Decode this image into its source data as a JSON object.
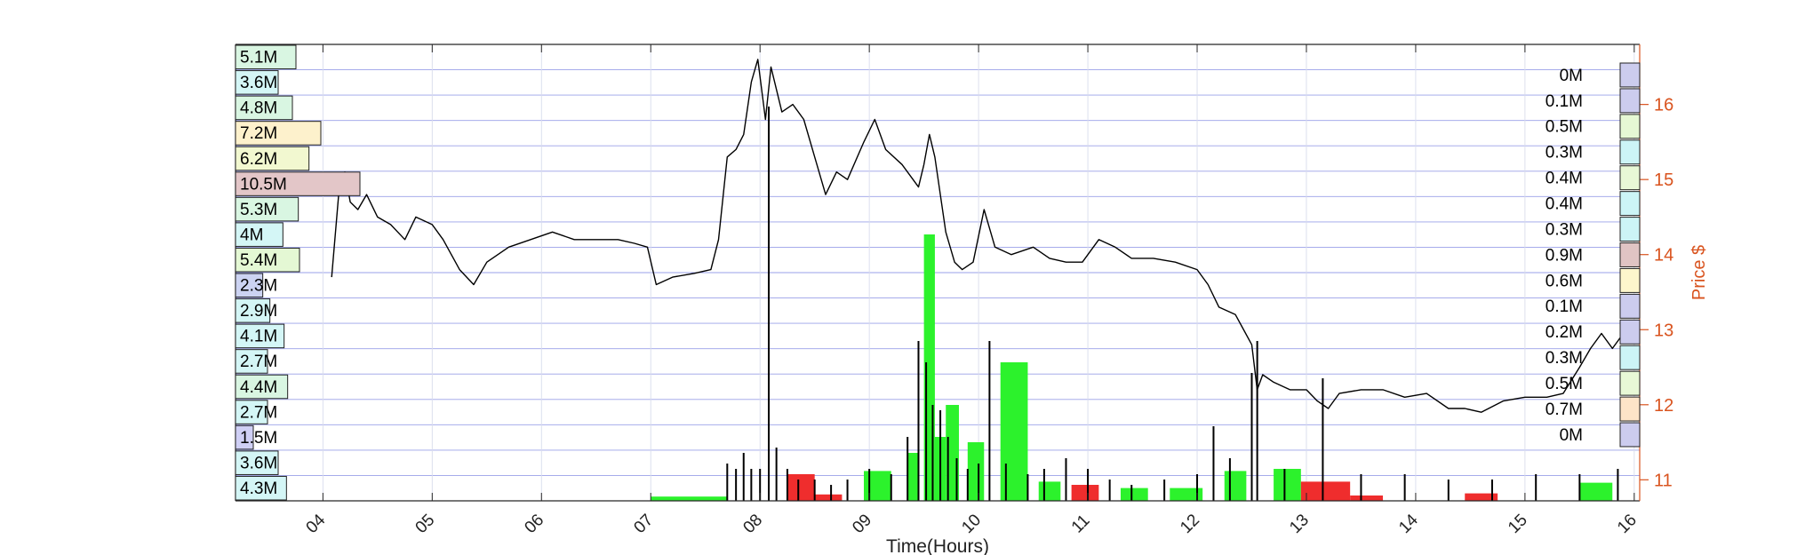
{
  "chart_data": {
    "type": "line",
    "subtype": "intraday price with volume-by-price profile and per-minute volume bars",
    "xlabel": "Time(Hours)",
    "ylabel_right": "Price $",
    "x_ticks": [
      "04",
      "05",
      "06",
      "07",
      "08",
      "09",
      "10",
      "11",
      "12",
      "13",
      "14",
      "15",
      "16"
    ],
    "x_range_hours": [
      3.2,
      16.05
    ],
    "price_ticks": [
      11,
      12,
      13,
      14,
      15,
      16
    ],
    "price_range": [
      10.72,
      16.8
    ],
    "grid": true,
    "price_series": {
      "name": "",
      "x_hours": [
        4.08,
        4.15,
        4.2,
        4.25,
        4.32,
        4.4,
        4.5,
        4.62,
        4.75,
        4.85,
        5.0,
        5.1,
        5.25,
        5.38,
        5.5,
        5.7,
        5.9,
        6.1,
        6.3,
        6.5,
        6.7,
        6.85,
        6.97,
        7.05,
        7.2,
        7.4,
        7.55,
        7.62,
        7.7,
        7.78,
        7.85,
        7.92,
        7.98,
        8.05,
        8.1,
        8.2,
        8.3,
        8.4,
        8.5,
        8.6,
        8.7,
        8.8,
        8.95,
        9.05,
        9.15,
        9.3,
        9.45,
        9.5,
        9.55,
        9.6,
        9.7,
        9.78,
        9.85,
        9.95,
        10.05,
        10.15,
        10.3,
        10.5,
        10.65,
        10.8,
        10.95,
        11.1,
        11.25,
        11.4,
        11.6,
        11.8,
        12.0,
        12.1,
        12.2,
        12.35,
        12.5,
        12.55,
        12.6,
        12.7,
        12.85,
        13.0,
        13.1,
        13.2,
        13.3,
        13.5,
        13.7,
        13.9,
        14.1,
        14.3,
        14.45,
        14.6,
        14.8,
        15.0,
        15.2,
        15.35,
        15.5,
        15.6,
        15.7,
        15.8,
        15.9,
        15.98
      ],
      "y_price": [
        13.7,
        14.9,
        15.1,
        14.7,
        14.6,
        14.8,
        14.5,
        14.4,
        14.2,
        14.5,
        14.4,
        14.2,
        13.8,
        13.6,
        13.9,
        14.1,
        14.2,
        14.3,
        14.2,
        14.2,
        14.2,
        14.15,
        14.1,
        13.6,
        13.7,
        13.75,
        13.8,
        14.2,
        15.3,
        15.4,
        15.6,
        16.3,
        16.6,
        15.8,
        16.5,
        15.9,
        16.0,
        15.8,
        15.3,
        14.8,
        15.1,
        15.0,
        15.5,
        15.8,
        15.4,
        15.2,
        14.9,
        15.2,
        15.6,
        15.3,
        14.3,
        13.9,
        13.8,
        13.9,
        14.6,
        14.1,
        14.0,
        14.1,
        13.95,
        13.9,
        13.9,
        14.2,
        14.1,
        13.95,
        13.95,
        13.9,
        13.8,
        13.6,
        13.3,
        13.2,
        12.8,
        12.2,
        12.4,
        12.3,
        12.2,
        12.2,
        12.05,
        11.95,
        12.15,
        12.2,
        12.2,
        12.1,
        12.15,
        11.95,
        11.95,
        11.9,
        12.05,
        12.1,
        12.1,
        12.15,
        12.5,
        12.75,
        12.95,
        12.75,
        12.95,
        12.9
      ]
    },
    "volume_by_price_left": {
      "labels": [
        "5.1M",
        "3.6M",
        "4.8M",
        "7.2M",
        "6.2M",
        "10.5M",
        "5.3M",
        "4M",
        "5.4M",
        "2.3M",
        "2.9M",
        "4.1M",
        "2.7M",
        "4.4M",
        "2.7M",
        "1.5M",
        "3.6M",
        "4.3M"
      ],
      "values_millions": [
        5.1,
        3.6,
        4.8,
        7.2,
        6.2,
        10.5,
        5.3,
        4.0,
        5.4,
        2.3,
        2.9,
        4.1,
        2.7,
        4.4,
        2.7,
        1.5,
        3.6,
        4.3
      ],
      "colors": [
        "#d9f6e2",
        "#d4f6f6",
        "#d9f6e2",
        "#fdf1cc",
        "#f2f8d0",
        "#e3c6c8",
        "#d9f6e2",
        "#d4f6f6",
        "#e4f8d4",
        "#ccd3f2",
        "#d4f6f6",
        "#d4f6f6",
        "#d4f6f6",
        "#d9f6e2",
        "#d4f6f6",
        "#cfcff5",
        "#d4f6f6",
        "#d4f6f6"
      ]
    },
    "volume_by_price_right": {
      "labels": [
        "0M",
        "0.1M",
        "0.5M",
        "0.3M",
        "0.4M",
        "0.4M",
        "0.3M",
        "0.9M",
        "0.6M",
        "0.1M",
        "0.2M",
        "0.3M",
        "0.5M",
        "0.7M",
        "0M"
      ],
      "values_millions": [
        0,
        0.1,
        0.5,
        0.3,
        0.4,
        0.4,
        0.3,
        0.9,
        0.6,
        0.1,
        0.2,
        0.3,
        0.5,
        0.7,
        0
      ],
      "colors": [
        "#ccccee",
        "#ccccee",
        "#e6f8d4",
        "#ccf4f6",
        "#e8f8d6",
        "#ccf4f6",
        "#ccf4f6",
        "#e0c4c4",
        "#fdf6cc",
        "#ccccee",
        "#ccccee",
        "#ccf4f6",
        "#e8f8d6",
        "#fde4c8",
        "#ccccee"
      ]
    },
    "aggregate_volume_blocks": {
      "x_start_hours": [
        7.0,
        8.25,
        8.5,
        8.95,
        9.35,
        9.5,
        9.6,
        9.7,
        9.9,
        10.2,
        10.55,
        10.85,
        11.3,
        11.75,
        12.25,
        12.7,
        12.95,
        13.4,
        14.45,
        15.5
      ],
      "x_end_hours": [
        7.7,
        8.5,
        8.75,
        9.2,
        9.45,
        9.6,
        9.7,
        9.82,
        10.05,
        10.45,
        10.75,
        11.1,
        11.55,
        12.05,
        12.45,
        12.95,
        13.4,
        13.7,
        14.75,
        15.8
      ],
      "volume_millions": [
        0.04,
        0.25,
        0.06,
        0.28,
        0.45,
        2.5,
        0.6,
        0.9,
        0.55,
        1.3,
        0.18,
        0.15,
        0.12,
        0.12,
        0.28,
        0.3,
        0.18,
        0.05,
        0.07,
        0.17
      ],
      "direction": [
        "up",
        "down",
        "down",
        "up",
        "up",
        "up",
        "up",
        "up",
        "up",
        "up",
        "up",
        "down",
        "up",
        "up",
        "up",
        "up",
        "down",
        "down",
        "down",
        "up"
      ]
    },
    "per_minute_volume": {
      "x_hours": [
        7.7,
        7.78,
        7.85,
        7.92,
        8.0,
        8.08,
        8.15,
        8.25,
        8.35,
        8.5,
        8.65,
        8.8,
        9.0,
        9.2,
        9.35,
        9.45,
        9.52,
        9.58,
        9.65,
        9.72,
        9.8,
        9.9,
        10.0,
        10.1,
        10.25,
        10.45,
        10.6,
        10.8,
        11.0,
        11.2,
        11.4,
        11.7,
        12.0,
        12.15,
        12.3,
        12.5,
        12.55,
        12.8,
        13.15,
        13.5,
        13.9,
        14.3,
        14.7,
        15.1,
        15.5,
        15.85
      ],
      "volume_millions": [
        0.35,
        0.3,
        0.45,
        0.3,
        0.3,
        3.7,
        0.5,
        0.3,
        0.2,
        0.2,
        0.15,
        0.2,
        0.3,
        0.25,
        0.6,
        1.5,
        1.3,
        0.9,
        0.85,
        0.6,
        0.4,
        0.3,
        0.35,
        1.5,
        0.35,
        0.25,
        0.3,
        0.4,
        0.3,
        0.2,
        0.15,
        0.2,
        0.25,
        0.7,
        0.4,
        1.2,
        1.5,
        0.3,
        1.15,
        0.25,
        0.25,
        0.2,
        0.2,
        0.25,
        0.25,
        0.3
      ]
    }
  }
}
